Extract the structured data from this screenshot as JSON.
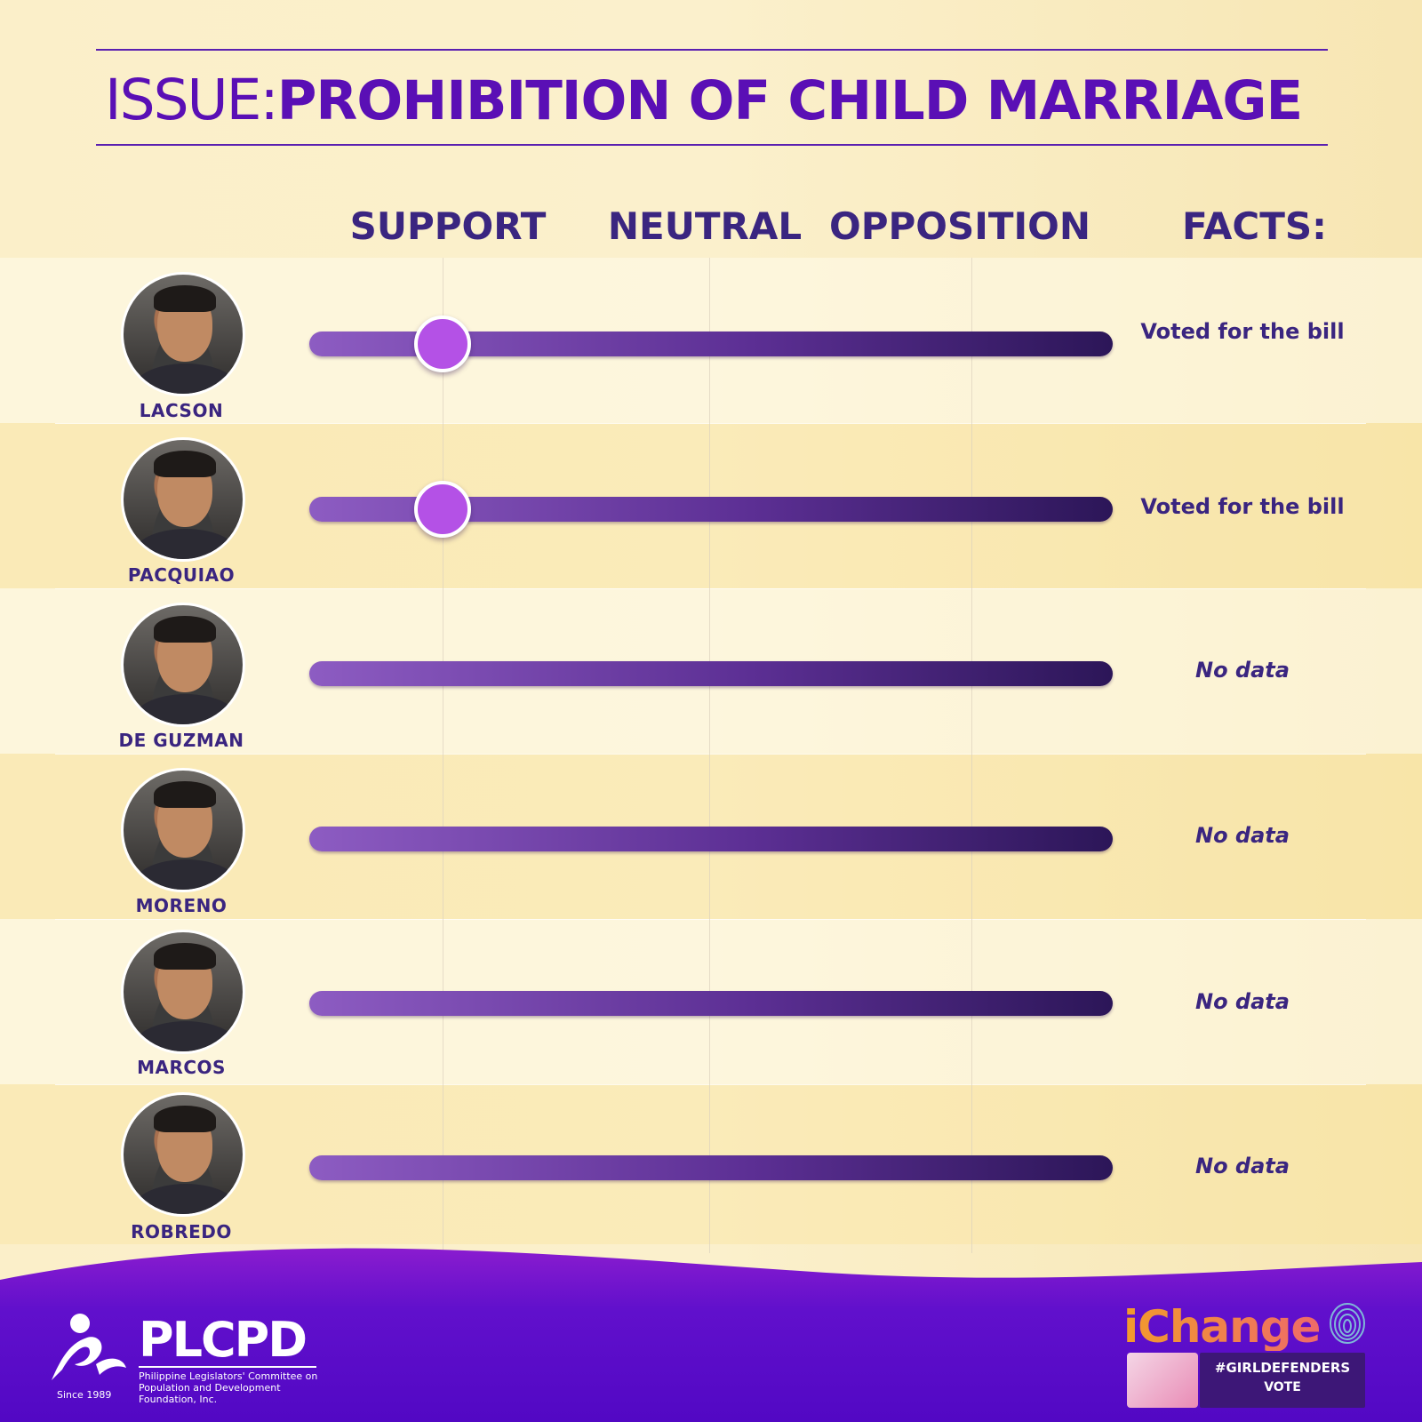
{
  "header": {
    "issue_label": "ISSUE:",
    "issue_title": "PROHIBITION OF CHILD MARRIAGE"
  },
  "columns": {
    "support": "SUPPORT",
    "neutral": "NEUTRAL",
    "opposition": "OPPOSITION",
    "facts": "FACTS:"
  },
  "candidates": [
    {
      "name": "LACSON",
      "stance": "support",
      "fact": "Voted for the bill"
    },
    {
      "name": "PACQUIAO",
      "stance": "support",
      "fact": "Voted for the bill"
    },
    {
      "name": "DE GUZMAN",
      "stance": null,
      "fact": "No data"
    },
    {
      "name": "MORENO",
      "stance": null,
      "fact": "No data"
    },
    {
      "name": "MARCOS",
      "stance": null,
      "fact": "No data"
    },
    {
      "name": "ROBREDO",
      "stance": null,
      "fact": "No data"
    }
  ],
  "colors": {
    "accent_purple": "#5a0fb5",
    "heading_purple": "#3a2580",
    "knob": "#b451e6",
    "footer_purple": "#5b0cc8",
    "ichange_orange": "#f29b2b"
  },
  "footer": {
    "plcpd_name": "PLCPD",
    "plcpd_full_name": "Philippine Legislators' Committee on Population and Development Foundation, Inc.",
    "plcpd_since": "Since 1989",
    "ichange_logo": "iChange",
    "hashtag": "#GIRLDEFENDERS",
    "hashtag_sub": "VOTE"
  }
}
